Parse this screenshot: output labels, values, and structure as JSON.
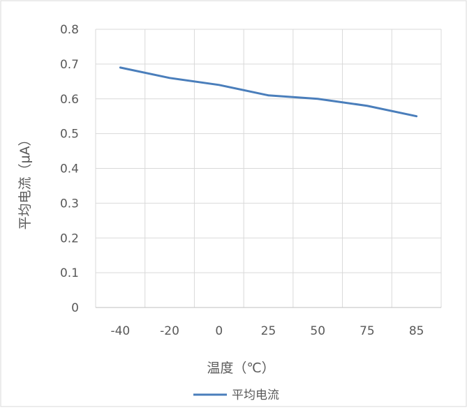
{
  "chart_data": {
    "type": "line",
    "title": "",
    "xlabel": "温度（℃）",
    "ylabel": "平均电流（μA）",
    "categories": [
      "-40",
      "-20",
      "0",
      "25",
      "50",
      "75",
      "85"
    ],
    "series": [
      {
        "name": "平均电流",
        "values": [
          0.69,
          0.66,
          0.64,
          0.61,
          0.6,
          0.58,
          0.55
        ],
        "color": "#4a7ebb"
      }
    ],
    "ylim": [
      0,
      0.8
    ],
    "yticks": [
      "0",
      "0.1",
      "0.2",
      "0.3",
      "0.4",
      "0.5",
      "0.6",
      "0.7",
      "0.8"
    ],
    "grid": true,
    "legend_position": "bottom"
  }
}
